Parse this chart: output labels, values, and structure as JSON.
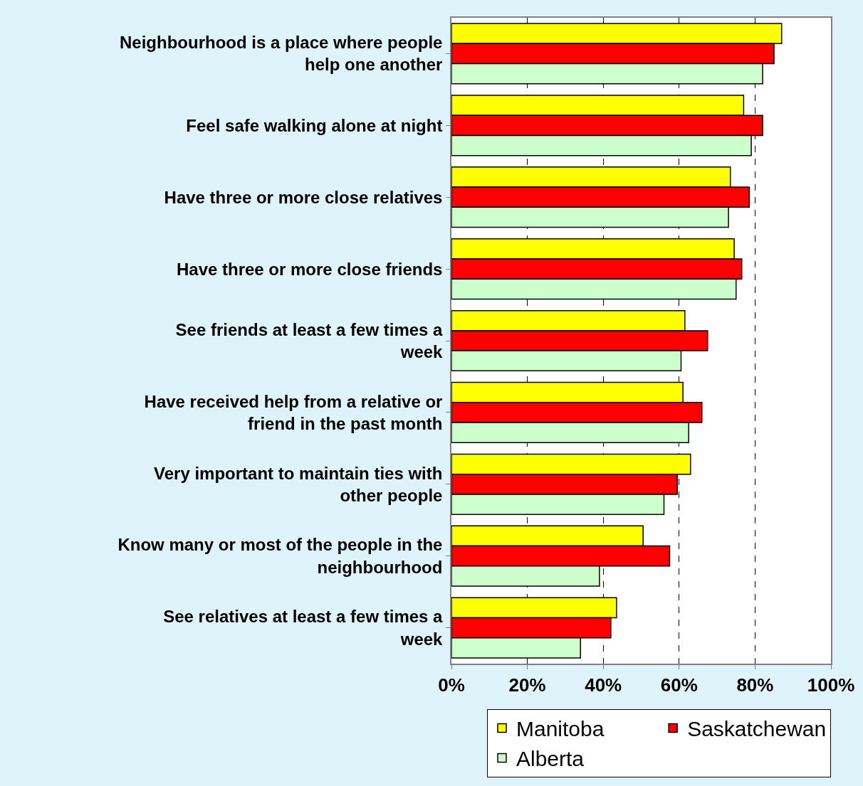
{
  "chart_data": {
    "type": "bar",
    "orientation": "horizontal",
    "categories": [
      "Neighbourhood is a place where people help one another",
      "Feel safe walking alone at night",
      "Have three or more close relatives",
      "Have three or more close friends",
      "See friends at least a few times a week",
      "Have received help from a relative or friend in the past month",
      "Very important to maintain ties with other people",
      "Know many or most of the people in the neighbourhood",
      "See relatives at least a few times a week"
    ],
    "series": [
      {
        "name": "Manitoba",
        "color": "#ffff00",
        "values": [
          87,
          77,
          73.5,
          74.5,
          61.5,
          61,
          63,
          50.5,
          43.5
        ]
      },
      {
        "name": "Saskatchewan",
        "color": "#ff0000",
        "values": [
          85,
          82,
          78.5,
          76.5,
          67.5,
          66,
          59.5,
          57.5,
          42
        ]
      },
      {
        "name": "Alberta",
        "color": "#ccffcc",
        "values": [
          82,
          79,
          73,
          75,
          60.5,
          62.5,
          56,
          39,
          34
        ]
      }
    ],
    "xlim": [
      0,
      100
    ],
    "xticks": [
      {
        "value": 0,
        "label": "0%"
      },
      {
        "value": 20,
        "label": "20%"
      },
      {
        "value": 40,
        "label": "40%"
      },
      {
        "value": 60,
        "label": "60%"
      },
      {
        "value": 80,
        "label": "80%"
      },
      {
        "value": 100,
        "label": "100%"
      }
    ],
    "grid": "x",
    "legend": "bottom right"
  }
}
